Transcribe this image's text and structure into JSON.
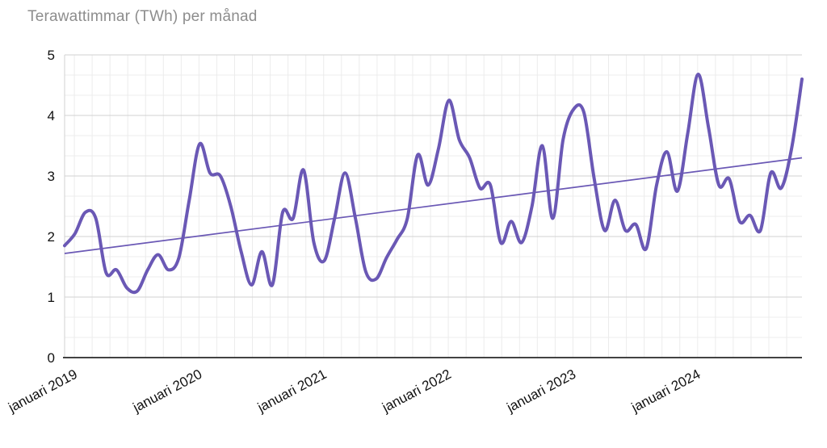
{
  "title": "Terawattimmar (TWh) per månad",
  "chart_data": {
    "type": "line",
    "title": "Terawattimmar (TWh) per månad",
    "x_tick_labels": [
      "januari 2019",
      "januari 2020",
      "januari 2021",
      "januari 2022",
      "januari 2023",
      "januari 2024"
    ],
    "x_months_start": "januari 2019",
    "x_months_end": "december 2024",
    "y_ticks": [
      0,
      1,
      2,
      3,
      4,
      5
    ],
    "ylim": [
      0,
      5
    ],
    "grid": true,
    "legend_position": "none",
    "series": [
      {
        "name": "Terawattimmar (TWh) per månad",
        "style": "smooth-line",
        "color": "#6a58b5",
        "values": [
          1.85,
          2.05,
          2.4,
          2.3,
          1.4,
          1.45,
          1.15,
          1.1,
          1.45,
          1.7,
          1.45,
          1.65,
          2.6,
          3.53,
          3.05,
          3.0,
          2.5,
          1.75,
          1.2,
          1.75,
          1.2,
          2.4,
          2.3,
          3.1,
          1.9,
          1.6,
          2.3,
          3.05,
          2.3,
          1.42,
          1.3,
          1.65,
          1.95,
          2.3,
          3.35,
          2.85,
          3.45,
          4.25,
          3.6,
          3.3,
          2.8,
          2.85,
          1.9,
          2.25,
          1.9,
          2.5,
          3.5,
          2.3,
          3.6,
          4.1,
          4.05,
          2.95,
          2.1,
          2.6,
          2.1,
          2.2,
          1.8,
          2.85,
          3.4,
          2.75,
          3.7,
          4.68,
          3.8,
          2.85,
          2.95,
          2.25,
          2.35,
          2.1,
          3.05,
          2.8,
          3.45,
          4.6
        ]
      }
    ],
    "trendline": {
      "style": "linear",
      "color": "#6a58b5",
      "start_value": 1.72,
      "end_value": 3.3
    },
    "colors": {
      "series": "#6a58b5",
      "trendline": "#6a58b5",
      "title_text": "#8d8d8d",
      "axis_text": "#111111",
      "gridline_minor": "#ececec",
      "gridline_major": "#d2d2d2",
      "axis_line": "#424242"
    }
  }
}
